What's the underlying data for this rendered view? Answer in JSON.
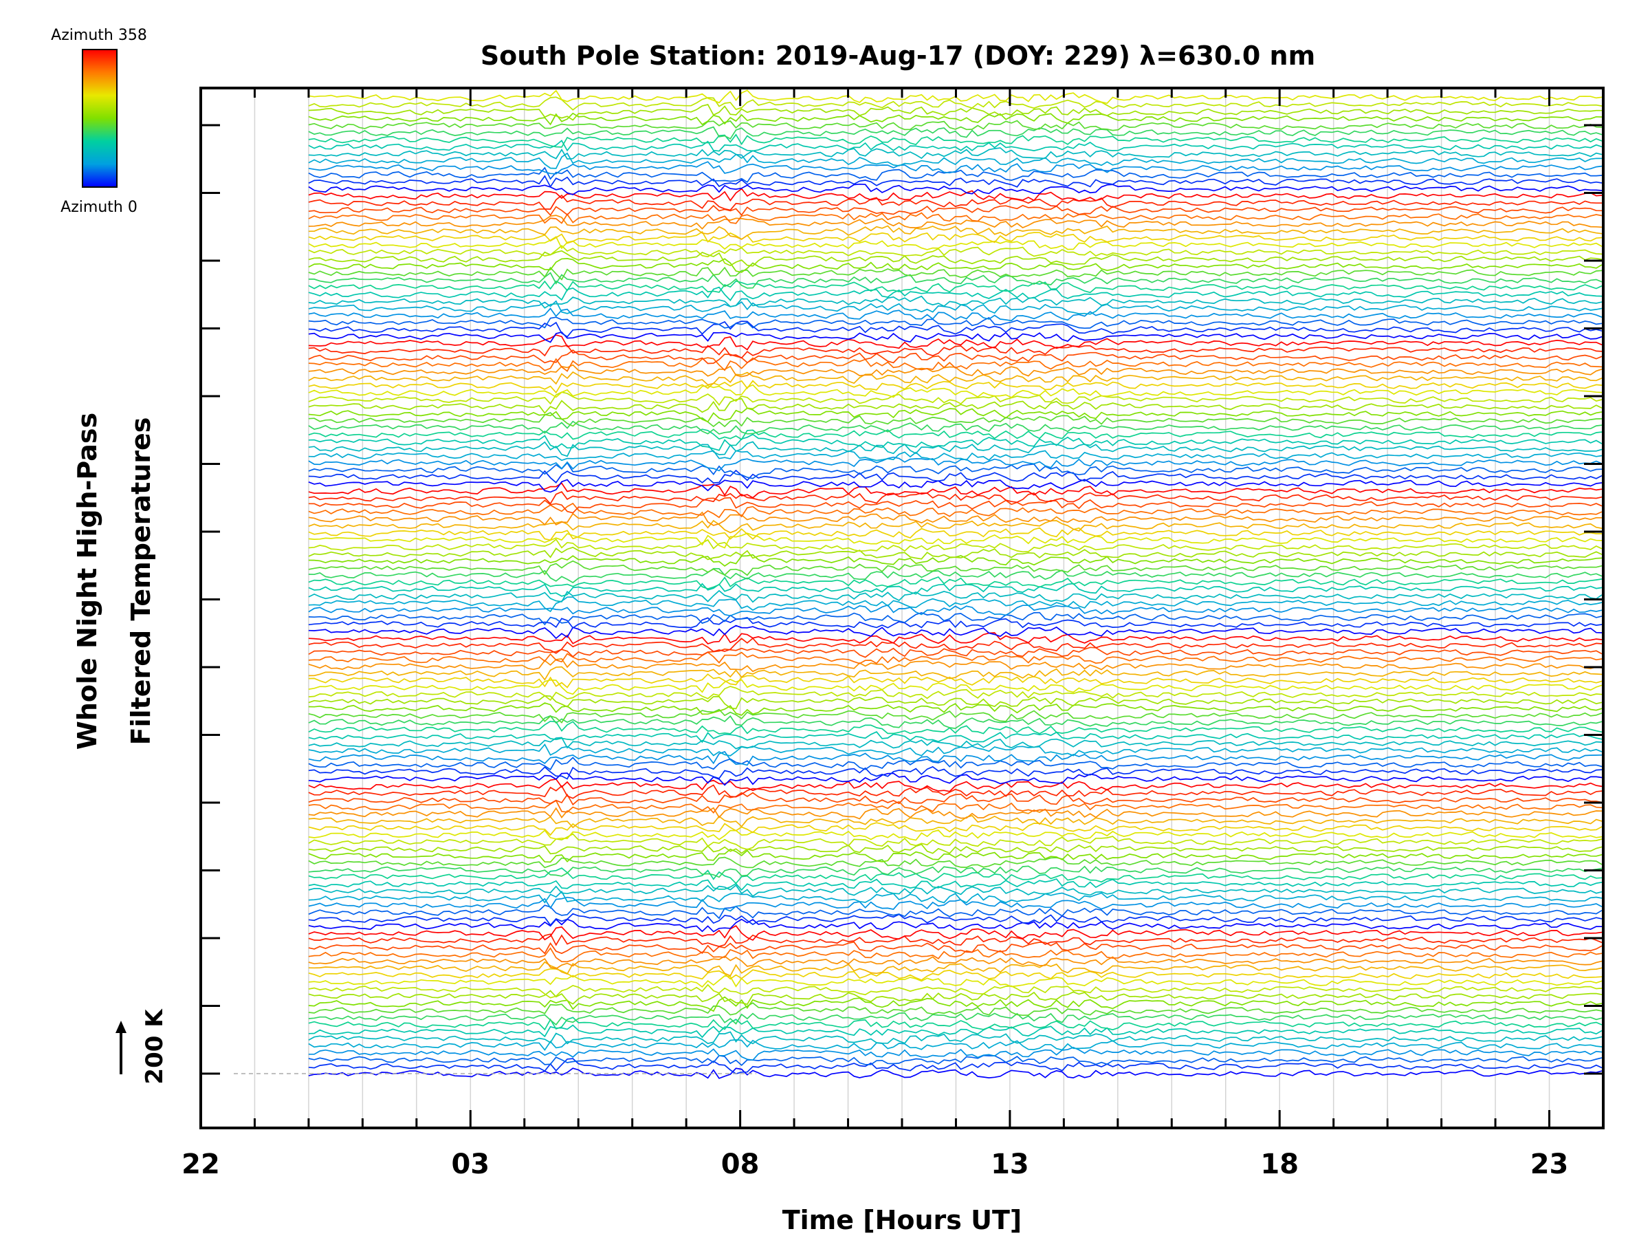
{
  "chart_data": {
    "type": "line",
    "title": "South Pole Station: 2019-Aug-17 (DOY: 229) λ=630.0 nm",
    "xlabel": "Time [Hours UT]",
    "ylabel_line1": "Whole Night High-Pass",
    "ylabel_line2": "Filtered Temperatures",
    "scale_label": "200 K",
    "x_ticks": [
      "22",
      "03",
      "08",
      "13",
      "18",
      "23"
    ],
    "x_tick_hours": [
      22,
      27,
      32,
      37,
      42,
      47
    ],
    "xlim_hours": [
      22,
      48
    ],
    "data_start_hour": 24,
    "data_end_hour": 48,
    "trace_count": 140,
    "traces_per_group": 21,
    "colorbar": {
      "top_label": "Azimuth 358",
      "bottom_label": "Azimuth 0",
      "colors": [
        "#ff0000",
        "#ff7a00",
        "#e8e800",
        "#80e000",
        "#00d0a0",
        "#00a0e0",
        "#0000ff"
      ]
    },
    "grid": true
  }
}
